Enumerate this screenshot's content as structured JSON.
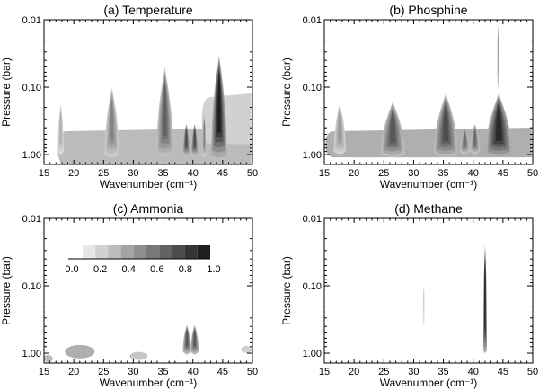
{
  "chart_data": [
    {
      "type": "contour",
      "title": "(a) Temperature",
      "xlabel": "Wavenumber (cm⁻¹)",
      "ylabel": "Pressure (bar)",
      "xlim": [
        15,
        50
      ],
      "ylim": [
        1.4,
        0.01
      ],
      "yscale": "log",
      "x_ticks": [
        "15",
        "20",
        "25",
        "30",
        "35",
        "40",
        "45",
        "50"
      ],
      "y_ticks": [
        "0.01",
        "0.10",
        "1.00"
      ],
      "features": [
        {
          "kind": "band",
          "x_start": 17.3,
          "x_end": 49.8,
          "top_pressure": 0.45,
          "bottom_pressure": 1.45,
          "value": 0.25
        },
        {
          "kind": "band",
          "x_start": 41.5,
          "x_end": 49.8,
          "top_pressure": 0.14,
          "bottom_pressure": 0.7,
          "value": 0.15
        },
        {
          "kind": "peak",
          "center": 17.8,
          "top_pressure": 0.18,
          "bottom_pressure": 0.9,
          "width": 0.5,
          "value": 0.3
        },
        {
          "kind": "peak",
          "center": 26.4,
          "top_pressure": 0.1,
          "bottom_pressure": 1.0,
          "width": 1.2,
          "value": 0.5
        },
        {
          "kind": "peak",
          "center": 35.3,
          "top_pressure": 0.05,
          "bottom_pressure": 1.0,
          "width": 1.4,
          "value": 0.65
        },
        {
          "kind": "peak",
          "center": 38.9,
          "top_pressure": 0.35,
          "bottom_pressure": 0.95,
          "width": 0.6,
          "value": 0.75
        },
        {
          "kind": "peak",
          "center": 40.3,
          "top_pressure": 0.35,
          "bottom_pressure": 0.95,
          "width": 0.6,
          "value": 0.75
        },
        {
          "kind": "peak",
          "center": 41.9,
          "top_pressure": 0.25,
          "bottom_pressure": 1.0,
          "width": 0.35,
          "value": 0.5
        },
        {
          "kind": "peak",
          "center": 44.4,
          "top_pressure": 0.033,
          "bottom_pressure": 1.0,
          "width": 1.3,
          "value": 0.95
        }
      ]
    },
    {
      "type": "contour",
      "title": "(b) Phosphine",
      "xlabel": "Wavenumber (cm⁻¹)",
      "ylabel": "Pressure (bar)",
      "xlim": [
        15,
        50
      ],
      "ylim": [
        1.4,
        0.01
      ],
      "yscale": "log",
      "x_ticks": [
        "15",
        "20",
        "25",
        "30",
        "35",
        "40",
        "45",
        "50"
      ],
      "y_ticks": [
        "0.01",
        "0.10",
        "1.00"
      ],
      "features": [
        {
          "kind": "band",
          "x_start": 15.2,
          "x_end": 49.8,
          "top_pressure": 0.45,
          "bottom_pressure": 1.1,
          "value": 0.3
        },
        {
          "kind": "peak",
          "center": 17.6,
          "top_pressure": 0.17,
          "bottom_pressure": 0.9,
          "width": 1.0,
          "value": 0.4
        },
        {
          "kind": "peak",
          "center": 26.5,
          "top_pressure": 0.16,
          "bottom_pressure": 1.0,
          "width": 2.0,
          "value": 0.7
        },
        {
          "kind": "peak",
          "center": 35.4,
          "top_pressure": 0.12,
          "bottom_pressure": 1.0,
          "width": 2.0,
          "value": 0.75
        },
        {
          "kind": "peak",
          "center": 38.6,
          "top_pressure": 0.4,
          "bottom_pressure": 0.9,
          "width": 0.8,
          "value": 0.6
        },
        {
          "kind": "peak",
          "center": 40.3,
          "top_pressure": 0.35,
          "bottom_pressure": 0.9,
          "width": 0.8,
          "value": 0.6
        },
        {
          "kind": "peak",
          "center": 44.3,
          "top_pressure": 0.12,
          "bottom_pressure": 1.0,
          "width": 2.2,
          "value": 0.9
        },
        {
          "kind": "peak",
          "center": 44.2,
          "top_pressure": 0.012,
          "bottom_pressure": 0.09,
          "width": 0.12,
          "value": 0.4
        }
      ]
    },
    {
      "type": "contour",
      "title": "(c) Ammonia",
      "xlabel": "Wavenumber (cm⁻¹)",
      "ylabel": "Pressure (bar)",
      "xlim": [
        15,
        50
      ],
      "ylim": [
        1.4,
        0.01
      ],
      "yscale": "log",
      "x_ticks": [
        "15",
        "20",
        "25",
        "30",
        "35",
        "40",
        "45",
        "50"
      ],
      "y_ticks": [
        "0.01",
        "0.10",
        "1.00"
      ],
      "colorbar": {
        "min": 0.0,
        "max": 1.0,
        "levels": 10,
        "tick_labels": [
          "0.0",
          "0.2",
          "0.4",
          "0.6",
          "0.8",
          "1.0"
        ]
      },
      "features": [
        {
          "kind": "blob",
          "center": 15.7,
          "pressure": 1.2,
          "width": 0.8,
          "value": 0.25
        },
        {
          "kind": "blob",
          "center": 21.0,
          "pressure": 0.95,
          "width": 2.5,
          "value": 0.3
        },
        {
          "kind": "blob",
          "center": 30.9,
          "pressure": 1.1,
          "width": 1.5,
          "value": 0.2
        },
        {
          "kind": "peak",
          "center": 39.0,
          "top_pressure": 0.38,
          "bottom_pressure": 0.95,
          "width": 0.7,
          "value": 0.7
        },
        {
          "kind": "peak",
          "center": 40.3,
          "top_pressure": 0.38,
          "bottom_pressure": 0.95,
          "width": 0.7,
          "value": 0.7
        },
        {
          "kind": "blob",
          "center": 49.0,
          "pressure": 0.88,
          "width": 0.9,
          "value": 0.15
        }
      ]
    },
    {
      "type": "contour",
      "title": "(d) Methane",
      "xlabel": "Wavenumber (cm⁻¹)",
      "ylabel": "Pressure (bar)",
      "xlim": [
        15,
        50
      ],
      "ylim": [
        1.4,
        0.01
      ],
      "yscale": "log",
      "x_ticks": [
        "15",
        "20",
        "25",
        "30",
        "35",
        "40",
        "45",
        "50"
      ],
      "y_ticks": [
        "0.01",
        "0.10",
        "1.00"
      ],
      "features": [
        {
          "kind": "peak",
          "center": 31.7,
          "top_pressure": 0.1,
          "bottom_pressure": 0.35,
          "width": 0.12,
          "value": 0.15
        },
        {
          "kind": "peak",
          "center": 42.0,
          "top_pressure": 0.025,
          "bottom_pressure": 0.9,
          "width": 0.3,
          "value": 0.95
        }
      ]
    }
  ]
}
